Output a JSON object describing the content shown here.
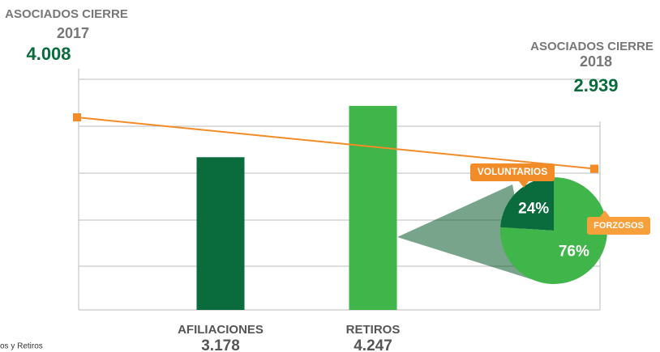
{
  "caption": "os y Retiros",
  "chart_data": [
    {
      "type": "bar",
      "categories": [
        "AFILIACIONES",
        "RETIROS"
      ],
      "values": [
        3178,
        4247
      ],
      "value_labels": [
        "3.178",
        "4.247"
      ],
      "colors": [
        "#0a6b3c",
        "#3fb54a"
      ],
      "ylim": [
        0,
        4800
      ],
      "line": {
        "name": "ASOCIADOS CIERRE",
        "x": [
          "2017",
          "2018"
        ],
        "values": [
          4008,
          2939
        ],
        "value_labels": [
          "4.008",
          "2.939"
        ],
        "color": "#f28c28"
      }
    },
    {
      "type": "pie",
      "categories": [
        "VOLUNTARIOS",
        "FORZOSOS"
      ],
      "values": [
        24,
        76
      ],
      "value_labels": [
        "24%",
        "76%"
      ],
      "colors": [
        "#0a6b3c",
        "#3fb54a"
      ],
      "label_colors": [
        "#f28c28",
        "#f5a03a"
      ]
    }
  ]
}
